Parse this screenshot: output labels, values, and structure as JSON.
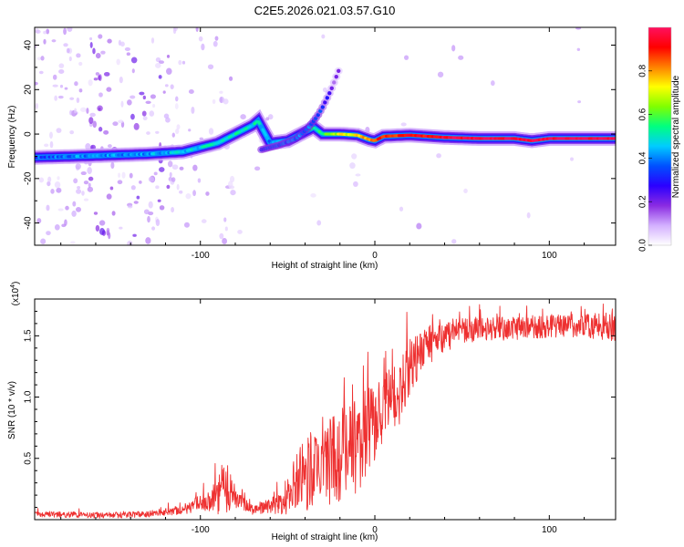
{
  "title": "C2E5.2026.021.03.57.G10",
  "chart_data": [
    {
      "type": "heatmap",
      "name": "spectrogram",
      "xlabel": "Height of straight line (km)",
      "ylabel": "Frequency (Hz)",
      "xlim": [
        -195,
        138
      ],
      "ylim": [
        -50,
        48
      ],
      "x_ticks": [
        -100,
        0,
        100
      ],
      "y_ticks": [
        -40,
        -20,
        0,
        20,
        40
      ],
      "colorbar": {
        "label": "Normalized spectral amplitude",
        "range": [
          0,
          1
        ],
        "ticks": [
          "0.0",
          "0.2",
          "0.4",
          "0.6",
          "0.8"
        ],
        "tick_values": [
          0.0,
          0.2,
          0.4,
          0.6,
          0.8
        ],
        "stops": [
          "#ffffff",
          "#d3b0ff",
          "#8a2be2",
          "#2b00ff",
          "#0050ff",
          "#00ccff",
          "#00ff80",
          "#80ff00",
          "#ffff00",
          "#ff8000",
          "#ff0000",
          "#ff1060"
        ]
      },
      "ridge": {
        "x": [
          -195,
          -170,
          -150,
          -130,
          -110,
          -90,
          -80,
          -70,
          -67,
          -60,
          -50,
          -40,
          -35,
          -30,
          -20,
          -10,
          -3,
          0,
          5,
          20,
          40,
          60,
          80,
          90,
          100,
          120,
          138
        ],
        "y": [
          -10.5,
          -10,
          -9.5,
          -9,
          -8,
          -4,
          0,
          4,
          6,
          -4,
          -3,
          1,
          3,
          0,
          0,
          -0.5,
          -2.5,
          -3,
          -1,
          -0.5,
          -1.5,
          -2,
          -2,
          -3,
          -2,
          -2,
          -2
        ],
        "amplitude": [
          0.35,
          0.4,
          0.4,
          0.42,
          0.45,
          0.5,
          0.5,
          0.5,
          0.5,
          0.4,
          0.45,
          0.5,
          0.5,
          0.55,
          0.7,
          0.75,
          0.8,
          0.9,
          0.85,
          0.9,
          0.95,
          1.0,
          1.0,
          1.0,
          1.0,
          1.0,
          1.0
        ]
      },
      "branch": {
        "x": [
          -65,
          -55,
          -45,
          -38,
          -33,
          -30,
          -25,
          -20
        ],
        "y": [
          -7,
          -5,
          -2,
          3,
          8,
          12,
          20,
          30
        ],
        "amplitude": [
          0.3,
          0.3,
          0.35,
          0.35,
          0.3,
          0.25,
          0.15,
          0.1
        ]
      }
    },
    {
      "type": "line",
      "name": "snr",
      "xlabel": "Height of straight line (km)",
      "ylabel": "SNR (10 * v/v)",
      "y_multiplier": "(x10",
      "y_multiplier_exp": "4",
      "y_multiplier_close": ")",
      "xlim": [
        -195,
        138
      ],
      "ylim": [
        0,
        1.8
      ],
      "x_ticks": [
        -100,
        0,
        100
      ],
      "y_ticks": [
        "0.5",
        "1.0",
        "1.5"
      ],
      "y_tick_values": [
        0.5,
        1.0,
        1.5
      ],
      "color": "#ee3030",
      "envelope": {
        "x": [
          -195,
          -150,
          -130,
          -110,
          -100,
          -92,
          -87,
          -82,
          -70,
          -60,
          -50,
          -45,
          -38,
          -30,
          -20,
          -10,
          0,
          8,
          15,
          20,
          30,
          45,
          60,
          80,
          100,
          120,
          138
        ],
        "mean": [
          0.05,
          0.04,
          0.05,
          0.09,
          0.15,
          0.2,
          0.3,
          0.2,
          0.09,
          0.12,
          0.18,
          0.35,
          0.45,
          0.55,
          0.6,
          0.7,
          0.85,
          1.05,
          1.1,
          1.3,
          1.45,
          1.55,
          1.57,
          1.58,
          1.6,
          1.6,
          1.6
        ],
        "spread": [
          0.03,
          0.03,
          0.03,
          0.05,
          0.08,
          0.15,
          0.3,
          0.1,
          0.05,
          0.08,
          0.15,
          0.3,
          0.4,
          0.45,
          0.5,
          0.5,
          0.4,
          0.3,
          0.35,
          0.3,
          0.2,
          0.15,
          0.12,
          0.12,
          0.12,
          0.12,
          0.15
        ]
      }
    }
  ]
}
